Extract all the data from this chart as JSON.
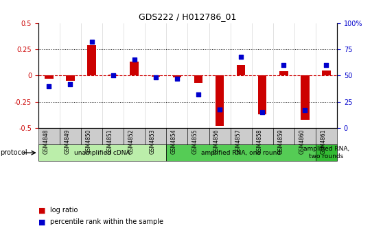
{
  "title": "GDS222 / H012786_01",
  "samples": [
    "GSM4848",
    "GSM4849",
    "GSM4850",
    "GSM4851",
    "GSM4852",
    "GSM4853",
    "GSM4854",
    "GSM4855",
    "GSM4856",
    "GSM4857",
    "GSM4858",
    "GSM4859",
    "GSM4860",
    "GSM4861"
  ],
  "log_ratio": [
    -0.03,
    -0.05,
    0.29,
    0.01,
    0.13,
    -0.01,
    -0.02,
    -0.07,
    -0.48,
    0.1,
    -0.37,
    0.04,
    -0.42,
    0.05
  ],
  "percentile": [
    40,
    42,
    82,
    50,
    65,
    48,
    47,
    32,
    18,
    68,
    15,
    60,
    17,
    60
  ],
  "ylim": [
    -0.5,
    0.5
  ],
  "y2lim": [
    0,
    100
  ],
  "yticks": [
    -0.5,
    -0.25,
    0,
    0.25,
    0.5
  ],
  "ytick_labels": [
    "-0.5",
    "-0.25",
    "0",
    "0.25",
    "0.5"
  ],
  "y2ticks": [
    0,
    25,
    50,
    75,
    100
  ],
  "y2tick_labels": [
    "0",
    "25",
    "50",
    "75",
    "100%"
  ],
  "bar_color": "#cc0000",
  "dot_color": "#0000cc",
  "protocol_groups": [
    {
      "label": "unamplified cDNA",
      "start": 0,
      "end": 5,
      "color": "#bbeeaa"
    },
    {
      "label": "amplified RNA, one round",
      "start": 6,
      "end": 12,
      "color": "#55cc55"
    },
    {
      "label": "amplified RNA,\ntwo rounds",
      "start": 13,
      "end": 13,
      "color": "#33bb33"
    }
  ],
  "legend_items": [
    {
      "label": "log ratio",
      "color": "#cc0000"
    },
    {
      "label": "percentile rank within the sample",
      "color": "#0000cc"
    }
  ],
  "protocol_label": "protocol",
  "bg_color": "#ffffff",
  "sample_box_color": "#cccccc"
}
